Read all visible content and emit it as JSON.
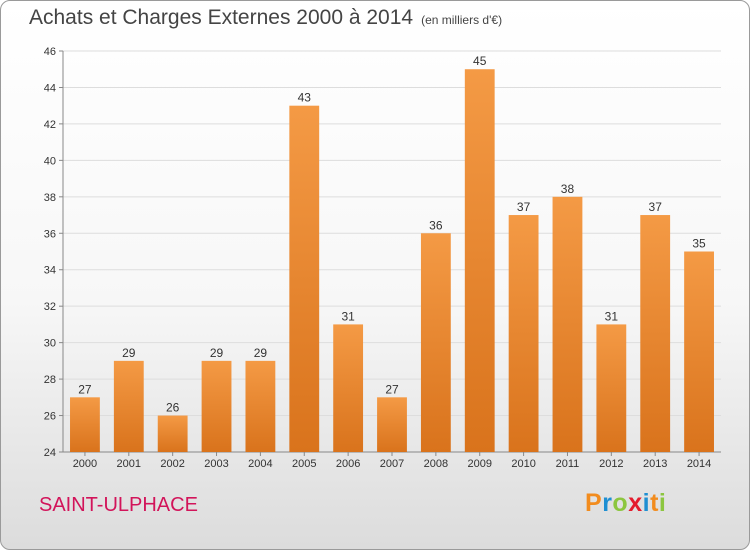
{
  "chart_data": {
    "type": "bar",
    "title": "Achats et Charges Externes 2000 à 2014",
    "subtitle": "(en milliers d'€)",
    "categories": [
      "2000",
      "2001",
      "2002",
      "2003",
      "2004",
      "2005",
      "2006",
      "2007",
      "2008",
      "2009",
      "2010",
      "2011",
      "2012",
      "2013",
      "2014"
    ],
    "values": [
      27,
      29,
      26,
      29,
      29,
      43,
      31,
      27,
      36,
      45,
      37,
      38,
      31,
      37,
      35
    ],
    "ylim": [
      24,
      46
    ],
    "yticks": [
      24,
      26,
      28,
      30,
      32,
      34,
      36,
      38,
      40,
      42,
      44,
      46
    ],
    "grid": true,
    "bar_color": "#f49a45",
    "bar_color_dark": "#d9731c"
  },
  "commune": "SAINT-ULPHACE",
  "logo": "Proxiti"
}
